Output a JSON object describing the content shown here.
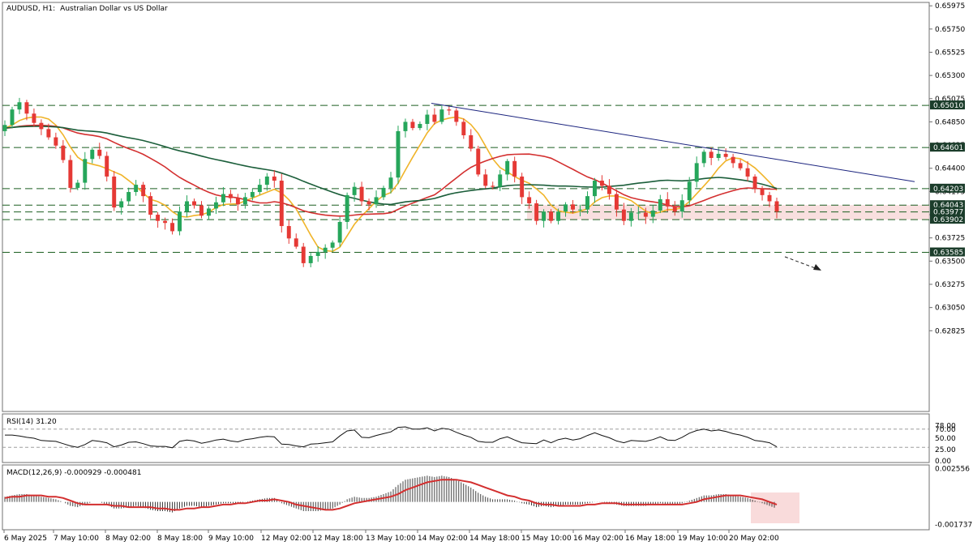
{
  "header": {
    "symbol": "AUDUSD, H1:",
    "description": "Australian Dollar vs US Dollar"
  },
  "colors": {
    "bull": "#26a65b",
    "bear": "#e53935",
    "ma_fast": "#f0b429",
    "ma_mid": "#d32f2f",
    "ma_slow": "#1b5e3a",
    "trendline": "#1a237e",
    "level": "#1b5e20",
    "zone": "#f8d7d7",
    "badge": "#1b3d2b"
  },
  "chart_data": [
    {
      "type": "candlestick",
      "title": "AUDUSD, H1:  Australian Dollar vs US Dollar",
      "ylim": [
        0.6205,
        0.66
      ],
      "y_ticks": [
        "0.65975",
        "0.65750",
        "0.65525",
        "0.65300",
        "0.65075",
        "0.64850",
        "0.64625",
        "0.64400",
        "0.64175",
        "0.63950",
        "0.63725",
        "0.63500",
        "0.63275",
        "0.63050",
        "0.62825"
      ],
      "x_ticks": [
        "6 May 2025",
        "7 May 10:00",
        "8 May 02:00",
        "8 May 18:00",
        "9 May 10:00",
        "12 May 02:00",
        "12 May 18:00",
        "13 May 10:00",
        "14 May 02:00",
        "14 May 18:00",
        "15 May 10:00",
        "16 May 02:00",
        "16 May 18:00",
        "19 May 10:00",
        "20 May 02:00"
      ],
      "key_levels": [
        "0.65010",
        "0.64601",
        "0.64203",
        "0.64043",
        "0.63977",
        "0.63902",
        "0.63585"
      ],
      "highlight_levels": [
        "0.64601",
        "0.64203"
      ],
      "support_zone": [
        0.63902,
        0.64043
      ],
      "trendline": [
        [
          0.6503,
          0.6427
        ]
      ],
      "close_series": [
        0.6482,
        0.6497,
        0.6504,
        0.6493,
        0.6484,
        0.6478,
        0.647,
        0.6462,
        0.6448,
        0.6421,
        0.6426,
        0.6449,
        0.6458,
        0.6452,
        0.6432,
        0.6402,
        0.6408,
        0.6417,
        0.6424,
        0.6413,
        0.6395,
        0.6389,
        0.6387,
        0.6379,
        0.6398,
        0.6408,
        0.6404,
        0.6394,
        0.6401,
        0.6407,
        0.6415,
        0.6411,
        0.6405,
        0.6412,
        0.6417,
        0.6424,
        0.6432,
        0.6428,
        0.6384,
        0.6372,
        0.6364,
        0.6348,
        0.6355,
        0.6359,
        0.6363,
        0.6368,
        0.6388,
        0.6414,
        0.6422,
        0.6408,
        0.6405,
        0.6412,
        0.6421,
        0.6431,
        0.6476,
        0.6485,
        0.6479,
        0.6483,
        0.6492,
        0.6485,
        0.6497,
        0.6496,
        0.6485,
        0.6472,
        0.6459,
        0.6434,
        0.6423,
        0.6422,
        0.6434,
        0.6447,
        0.6432,
        0.6412,
        0.6406,
        0.6389,
        0.6398,
        0.6389,
        0.6398,
        0.6405,
        0.64,
        0.64,
        0.6413,
        0.6428,
        0.6423,
        0.6415,
        0.64,
        0.6389,
        0.6397,
        0.6397,
        0.6393,
        0.6399,
        0.641,
        0.6403,
        0.6398,
        0.6409,
        0.6427,
        0.6445,
        0.6456,
        0.645,
        0.6454,
        0.6451,
        0.6445,
        0.644,
        0.6432,
        0.642,
        0.6414,
        0.6408,
        0.6398
      ]
    },
    {
      "type": "line",
      "title": "RSI(14) 31.20",
      "ylim": [
        0,
        100
      ],
      "y_ticks": [
        "78.00",
        "70.00",
        "50.00",
        "25.00",
        "0.00"
      ],
      "levels": [
        70,
        30
      ],
      "values": [
        57,
        57,
        55,
        52,
        50,
        45,
        44,
        43,
        38,
        33,
        30,
        36,
        45,
        43,
        40,
        31,
        35,
        41,
        42,
        38,
        33,
        32,
        32,
        29,
        43,
        46,
        44,
        39,
        42,
        46,
        48,
        44,
        42,
        47,
        49,
        52,
        54,
        53,
        37,
        36,
        33,
        31,
        37,
        38,
        40,
        42,
        55,
        66,
        68,
        52,
        51,
        56,
        60,
        64,
        74,
        75,
        70,
        70,
        73,
        66,
        72,
        70,
        63,
        57,
        52,
        43,
        41,
        41,
        49,
        53,
        46,
        40,
        39,
        38,
        46,
        40,
        47,
        50,
        46,
        49,
        56,
        62,
        56,
        51,
        44,
        40,
        45,
        44,
        43,
        47,
        53,
        46,
        45,
        52,
        61,
        67,
        70,
        66,
        68,
        65,
        60,
        57,
        52,
        45,
        43,
        40,
        31
      ]
    },
    {
      "type": "bar",
      "title": "MACD(12,26,9) -0.000929 -0.000481",
      "ylim": [
        -0.002,
        0.0027
      ],
      "y_ticks": [
        "0.002556",
        "-0.001737"
      ],
      "histogram": [
        0.0004,
        0.0005,
        0.0006,
        0.0006,
        0.0005,
        0.0004,
        0.0003,
        0.0002,
        0.0,
        -0.0003,
        -0.0004,
        -0.0002,
        0.0,
        0.0,
        -0.0002,
        -0.0005,
        -0.0005,
        -0.0004,
        -0.0003,
        -0.0004,
        -0.0006,
        -0.0007,
        -0.0007,
        -0.0008,
        -0.0005,
        -0.0003,
        -0.0003,
        -0.0004,
        -0.0003,
        -0.0002,
        -0.0001,
        -0.0001,
        -0.0001,
        0.0,
        0.0001,
        0.0002,
        0.0003,
        0.0003,
        -0.0001,
        -0.0003,
        -0.0005,
        -0.0007,
        -0.0007,
        -0.0007,
        -0.0006,
        -0.0005,
        -0.0002,
        0.0002,
        0.0004,
        0.0003,
        0.0003,
        0.0004,
        0.0006,
        0.0008,
        0.0013,
        0.0017,
        0.0018,
        0.0019,
        0.002,
        0.0019,
        0.002,
        0.0019,
        0.0017,
        0.0014,
        0.0011,
        0.0007,
        0.0004,
        0.0002,
        0.0002,
        0.0002,
        0.0001,
        -0.0001,
        -0.0002,
        -0.0004,
        -0.0003,
        -0.0004,
        -0.0003,
        -0.0002,
        -0.0002,
        -0.0002,
        -0.0001,
        0.0,
        0.0,
        -0.0001,
        -0.0002,
        -0.0003,
        -0.0003,
        -0.0003,
        -0.0003,
        -0.0002,
        -0.0001,
        -0.0002,
        -0.0002,
        -0.0001,
        0.0001,
        0.0003,
        0.0005,
        0.0005,
        0.0006,
        0.0006,
        0.0005,
        0.0004,
        0.0003,
        0.0001,
        -0.0001,
        -0.0003,
        -0.0005
      ],
      "signal": [
        0.0003,
        0.0004,
        0.0004,
        0.0005,
        0.0005,
        0.0005,
        0.0004,
        0.0004,
        0.0003,
        0.0001,
        -0.0001,
        -0.0002,
        -0.0002,
        -0.0002,
        -0.0002,
        -0.0003,
        -0.0003,
        -0.0004,
        -0.0004,
        -0.0004,
        -0.0004,
        -0.0005,
        -0.0005,
        -0.0006,
        -0.0006,
        -0.0005,
        -0.0005,
        -0.0004,
        -0.0004,
        -0.0003,
        -0.0002,
        -0.0002,
        -0.0001,
        -0.0001,
        0.0,
        0.0001,
        0.0001,
        0.0002,
        0.0001,
        0.0,
        -0.0002,
        -0.0003,
        -0.0004,
        -0.0005,
        -0.0006,
        -0.0006,
        -0.0005,
        -0.0003,
        -0.0001,
        0.0,
        0.0001,
        0.0002,
        0.0003,
        0.0004,
        0.0006,
        0.0009,
        0.0011,
        0.0013,
        0.0015,
        0.0016,
        0.0017,
        0.0017,
        0.0017,
        0.0016,
        0.0015,
        0.0013,
        0.0011,
        0.0009,
        0.0007,
        0.0005,
        0.0004,
        0.0002,
        0.0001,
        -0.0001,
        -0.0002,
        -0.0002,
        -0.0003,
        -0.0003,
        -0.0003,
        -0.0003,
        -0.0002,
        -0.0002,
        -0.0001,
        -0.0001,
        -0.0001,
        -0.0002,
        -0.0002,
        -0.0002,
        -0.0002,
        -0.0002,
        -0.0002,
        -0.0002,
        -0.0002,
        -0.0002,
        -0.0001,
        0.0,
        0.0002,
        0.0003,
        0.0004,
        0.0005,
        0.0005,
        0.0005,
        0.0004,
        0.0003,
        0.0002,
        0.0,
        -0.0002
      ]
    }
  ]
}
